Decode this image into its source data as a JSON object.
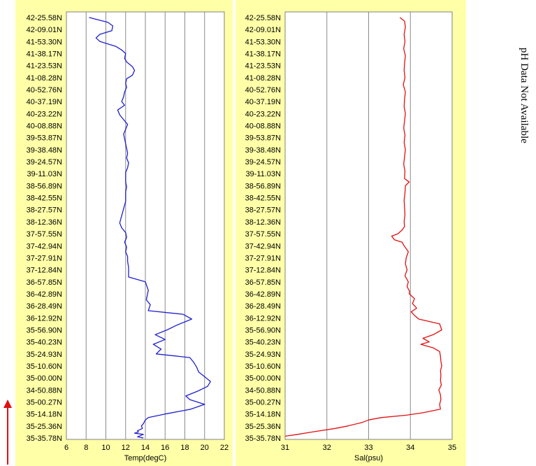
{
  "note": "pH Data Not Available",
  "chart_data": [
    {
      "type": "line",
      "xlabel": "Temp(degC)",
      "xlim": [
        6,
        22
      ],
      "xticks": [
        "6",
        "8",
        "10",
        "12",
        "14",
        "16",
        "18",
        "20",
        "22"
      ],
      "ylabel": "",
      "yticks": [
        "42-25.58N",
        "42-09.01N",
        "41-53.30N",
        "41-38.17N",
        "41-23.53N",
        "41-08.28N",
        "40-52.76N",
        "40-37.19N",
        "40-23.22N",
        "40-08.88N",
        "39-53.87N",
        "39-38.48N",
        "39-24.57N",
        "39-11.03N",
        "38-56.89N",
        "38-42.55N",
        "38-27.57N",
        "38-12.36N",
        "37-57.55N",
        "37-42.94N",
        "37-27.91N",
        "37-12.84N",
        "36-57.85N",
        "36-42.89N",
        "36-28.49N",
        "36-12.92N",
        "35-56.90N",
        "35-40.23N",
        "35-24.93N",
        "35-10.60N",
        "35-00.00N",
        "34-50.88N",
        "35-00.27N",
        "35-14.18N",
        "35-25.36N",
        "35-35.78N"
      ],
      "series": [
        {
          "color": "#1f1fd0",
          "x": [
            8.3,
            10.2,
            10.7,
            10.6,
            9.4,
            9.0,
            9.4,
            11.0,
            11.6,
            12.0,
            11.9,
            12.1,
            12.7,
            12.9,
            12.7,
            12.1,
            12.0,
            12.1,
            11.9,
            11.8,
            11.6,
            11.9,
            11.2,
            11.4,
            11.8,
            12.2,
            12.0,
            11.8,
            11.9,
            12.0,
            12.1,
            12.2,
            12.1,
            12.3,
            12.2,
            12.0,
            12.0,
            12.0,
            12.1,
            12.0,
            12.0,
            12.0,
            11.4,
            11.6,
            12.0,
            12.1,
            11.9,
            12.1,
            12.0,
            12.2,
            12.2,
            12.3,
            12.3,
            12.3,
            14.0,
            14.3,
            14.1,
            14.5,
            14.3,
            17.8,
            18.7,
            17.2,
            16.2,
            15.0,
            16.0,
            14.8,
            15.6,
            15.1,
            18.5,
            18.9,
            19.2,
            19.4,
            20.0,
            20.6,
            20.3,
            19.3,
            18.1,
            18.5,
            20.0,
            18.6,
            16.0,
            14.3,
            14.0,
            13.8,
            13.6,
            13.7,
            13.2,
            13.3,
            12.9,
            13.8,
            13.2,
            13.8
          ],
          "y": [
            35.0,
            34.6,
            34.3,
            33.9,
            33.6,
            33.3,
            33.0,
            32.6,
            32.3,
            32.0,
            31.6,
            31.3,
            30.9,
            30.6,
            30.2,
            29.9,
            29.5,
            29.2,
            28.8,
            28.4,
            28.0,
            27.7,
            27.3,
            26.9,
            26.5,
            26.1,
            25.7,
            25.3,
            24.9,
            24.5,
            24.1,
            23.7,
            23.3,
            22.9,
            22.5,
            22.1,
            21.7,
            21.3,
            20.9,
            20.5,
            20.1,
            19.7,
            17.9,
            17.5,
            17.1,
            16.7,
            16.3,
            15.9,
            15.5,
            15.1,
            14.7,
            14.2,
            13.8,
            13.4,
            13.0,
            12.3,
            11.5,
            11.1,
            10.6,
            10.3,
            9.9,
            9.4,
            9.0,
            8.6,
            8.2,
            7.8,
            7.4,
            7.0,
            6.7,
            6.3,
            5.9,
            5.5,
            5.1,
            4.7,
            4.3,
            3.9,
            3.5,
            3.2,
            2.8,
            2.4,
            2.0,
            1.7,
            1.5,
            1.2,
            1.0,
            0.8,
            0.6,
            0.5,
            0.4,
            0.3,
            0.1,
            0.0
          ]
        }
      ]
    },
    {
      "type": "line",
      "xlabel": "Sal(psu)",
      "xlim": [
        31,
        35
      ],
      "xticks": [
        "31",
        "32",
        "33",
        "34",
        "35"
      ],
      "ylabel": "",
      "yticks": [
        "42-25.58N",
        "42-09.01N",
        "41-53.30N",
        "41-38.17N",
        "41-23.53N",
        "41-08.28N",
        "40-52.76N",
        "40-37.19N",
        "40-23.22N",
        "40-08.88N",
        "39-53.87N",
        "39-38.48N",
        "39-24.57N",
        "39-11.03N",
        "38-56.89N",
        "38-42.55N",
        "38-27.57N",
        "38-12.36N",
        "37-57.55N",
        "37-42.94N",
        "37-27.91N",
        "37-12.84N",
        "36-57.85N",
        "36-42.89N",
        "36-28.49N",
        "36-12.92N",
        "35-56.90N",
        "35-40.23N",
        "35-24.93N",
        "35-10.60N",
        "35-00.00N",
        "34-50.88N",
        "35-00.27N",
        "35-14.18N",
        "35-25.36N",
        "35-35.78N"
      ],
      "series": [
        {
          "color": "#e01010",
          "x": [
            33.75,
            33.86,
            33.88,
            33.85,
            33.87,
            33.84,
            33.88,
            33.86,
            33.85,
            33.87,
            33.83,
            33.88,
            33.86,
            33.85,
            33.88,
            33.86,
            33.84,
            33.87,
            33.85,
            33.88,
            33.86,
            33.84,
            33.87,
            33.86,
            33.97,
            33.88,
            33.87,
            33.85,
            33.86,
            33.87,
            33.85,
            33.86,
            33.8,
            33.7,
            33.55,
            33.62,
            33.8,
            33.85,
            33.95,
            33.9,
            33.88,
            33.92,
            33.87,
            33.95,
            33.92,
            33.98,
            33.97,
            34.1,
            34.05,
            34.15,
            34.02,
            34.1,
            34.2,
            34.7,
            34.75,
            34.55,
            34.3,
            34.45,
            34.25,
            34.55,
            34.7,
            34.72,
            34.73,
            34.75,
            34.72,
            34.73,
            34.72,
            34.74,
            34.68,
            34.72,
            34.73,
            34.7,
            34.72,
            34.3,
            33.9,
            33.3,
            33.0,
            32.85,
            32.5,
            32.2,
            31.65,
            31.3,
            31.0
          ],
          "y": [
            35.0,
            34.7,
            34.2,
            33.6,
            33.0,
            32.4,
            31.8,
            31.2,
            30.6,
            30.0,
            29.4,
            28.8,
            28.2,
            27.6,
            27.0,
            26.4,
            25.8,
            25.2,
            24.6,
            24.0,
            23.4,
            22.8,
            22.2,
            21.6,
            21.3,
            21.0,
            20.4,
            19.8,
            19.2,
            18.6,
            18.0,
            17.6,
            17.3,
            17.0,
            16.8,
            16.5,
            16.3,
            16.0,
            15.5,
            15.0,
            14.5,
            14.0,
            13.5,
            13.0,
            12.6,
            12.2,
            12.0,
            11.6,
            11.2,
            10.8,
            10.5,
            10.2,
            9.9,
            9.5,
            9.0,
            8.6,
            8.3,
            8.0,
            7.8,
            7.5,
            7.2,
            6.8,
            6.4,
            6.0,
            5.6,
            5.2,
            4.8,
            4.4,
            4.0,
            3.6,
            3.2,
            2.8,
            2.4,
            2.1,
            1.9,
            1.7,
            1.5,
            1.3,
            1.0,
            0.8,
            0.5,
            0.3,
            0.15
          ]
        }
      ]
    }
  ]
}
